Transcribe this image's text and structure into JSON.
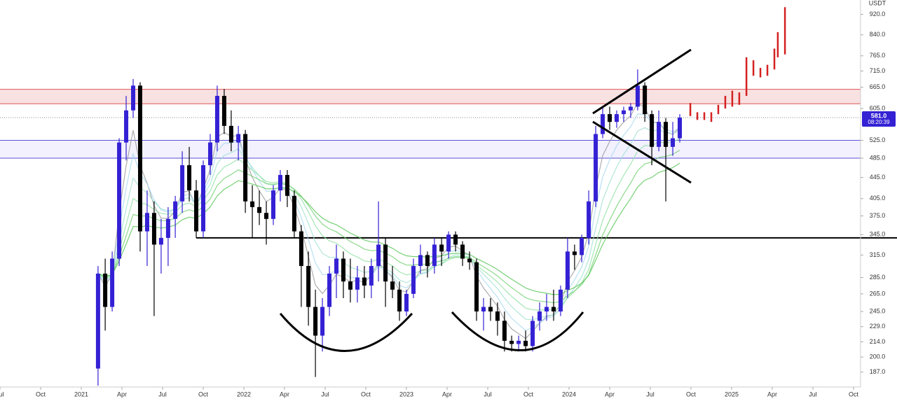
{
  "chart_data": {
    "type": "candlestick",
    "currency": "USDT",
    "log_scale": true,
    "xlim": [
      2020.5,
      2025.793
    ],
    "ylim": [
      175,
      981
    ],
    "xticks": [
      {
        "value": 2020.5,
        "label": "Jul"
      },
      {
        "value": 2020.75,
        "label": "Oct"
      },
      2021,
      {
        "value": 2021.25,
        "label": "Apr"
      },
      {
        "value": 2021.5,
        "label": "Jul"
      },
      {
        "value": 2021.75,
        "label": "Oct"
      },
      2022,
      {
        "value": 2022.25,
        "label": "Apr"
      },
      {
        "value": 2022.5,
        "label": "Jul"
      },
      {
        "value": 2022.75,
        "label": "Oct"
      },
      2023,
      {
        "value": 2023.25,
        "label": "Apr"
      },
      {
        "value": 2023.5,
        "label": "Jul"
      },
      {
        "value": 2023.75,
        "label": "Oct"
      },
      2024,
      {
        "value": 2024.25,
        "label": "Apr"
      },
      {
        "value": 2024.5,
        "label": "Jul"
      },
      {
        "value": 2024.75,
        "label": "Oct"
      },
      2025,
      {
        "value": 2025.25,
        "label": "Apr"
      },
      {
        "value": 2025.5,
        "label": "Jul"
      },
      {
        "value": 2025.75,
        "label": "Oct"
      }
    ],
    "yticks": [
      {
        "value": 920,
        "label": "920.0"
      },
      {
        "value": 840,
        "label": "840.0"
      },
      {
        "value": 765,
        "label": "765.0"
      },
      {
        "value": 715,
        "label": "715.0"
      },
      {
        "value": 665,
        "label": "665.0"
      },
      {
        "value": 605,
        "label": "605.0"
      },
      {
        "value": 525,
        "label": "525.0"
      },
      {
        "value": 485,
        "label": "485.0"
      },
      {
        "value": 445,
        "label": "445.0"
      },
      {
        "value": 405,
        "label": "405.0"
      },
      {
        "value": 375,
        "label": "375.0"
      },
      {
        "value": 345,
        "label": "345.0"
      },
      {
        "value": 315,
        "label": "315.0"
      },
      {
        "value": 285,
        "label": "285.0"
      },
      {
        "value": 265,
        "label": "265.0"
      },
      {
        "value": 245,
        "label": "245.0"
      },
      {
        "value": 229,
        "label": "229.0"
      },
      {
        "value": 214,
        "label": "214.0"
      },
      {
        "value": 200,
        "label": "200.0"
      },
      {
        "value": 187,
        "label": "187.0"
      }
    ],
    "up_color": "#3421d4",
    "down_color": "#000000",
    "candles": {
      "x": [
        2021.103,
        2021.147,
        2021.19,
        2021.233,
        2021.276,
        2021.319,
        2021.362,
        2021.405,
        2021.448,
        2021.491,
        2021.534,
        2021.578,
        2021.621,
        2021.664,
        2021.707,
        2021.75,
        2021.793,
        2021.836,
        2021.879,
        2021.922,
        2021.966,
        2022.009,
        2022.052,
        2022.095,
        2022.138,
        2022.181,
        2022.224,
        2022.267,
        2022.31,
        2022.353,
        2022.397,
        2022.44,
        2022.483,
        2022.526,
        2022.569,
        2022.612,
        2022.655,
        2022.698,
        2022.741,
        2022.784,
        2022.828,
        2022.871,
        2022.914,
        2022.957,
        2023.0,
        2023.043,
        2023.086,
        2023.129,
        2023.172,
        2023.216,
        2023.259,
        2023.302,
        2023.345,
        2023.388,
        2023.431,
        2023.474,
        2023.517,
        2023.56,
        2023.603,
        2023.647,
        2023.69,
        2023.733,
        2023.776,
        2023.819,
        2023.862,
        2023.905,
        2023.948,
        2023.991,
        2024.034,
        2024.078,
        2024.121,
        2024.164,
        2024.207,
        2024.25,
        2024.293,
        2024.336,
        2024.379,
        2024.422,
        2024.466,
        2024.509,
        2024.552,
        2024.595,
        2024.638,
        2024.681
      ],
      "open": [
        190,
        290,
        250,
        310,
        520,
        600,
        670,
        350,
        380,
        330,
        340,
        370,
        400,
        470,
        420,
        350,
        470,
        520,
        640,
        560,
        520,
        540,
        400,
        390,
        380,
        370,
        420,
        450,
        410,
        350,
        300,
        250,
        220,
        250,
        290,
        310,
        280,
        270,
        285,
        275,
        300,
        330,
        280,
        270,
        245,
        265,
        300,
        315,
        300,
        330,
        320,
        345,
        330,
        310,
        305,
        245,
        250,
        245,
        235,
        215,
        212,
        215,
        210,
        235,
        245,
        250,
        245,
        270,
        320,
        315,
        340,
        400,
        540,
        590,
        570,
        590,
        600,
        610,
        670,
        590,
        510,
        570,
        510,
        530
      ],
      "high": [
        300,
        310,
        320,
        530,
        640,
        690,
        680,
        420,
        400,
        370,
        390,
        410,
        500,
        510,
        440,
        480,
        540,
        670,
        660,
        600,
        560,
        550,
        430,
        420,
        400,
        430,
        460,
        460,
        420,
        360,
        320,
        270,
        260,
        300,
        330,
        320,
        310,
        300,
        300,
        310,
        400,
        340,
        300,
        280,
        270,
        310,
        330,
        320,
        340,
        340,
        350,
        350,
        335,
        320,
        310,
        260,
        260,
        255,
        245,
        220,
        220,
        225,
        240,
        255,
        265,
        270,
        275,
        340,
        330,
        345,
        420,
        560,
        610,
        610,
        600,
        610,
        620,
        720,
        680,
        600,
        600,
        580,
        570,
        590
      ],
      "low": [
        176,
        225,
        245,
        300,
        480,
        580,
        320,
        300,
        240,
        290,
        300,
        340,
        380,
        400,
        340,
        340,
        450,
        500,
        540,
        500,
        480,
        380,
        340,
        360,
        330,
        360,
        400,
        390,
        340,
        250,
        230,
        183,
        205,
        240,
        260,
        260,
        255,
        255,
        260,
        260,
        280,
        250,
        260,
        235,
        240,
        260,
        290,
        285,
        290,
        300,
        310,
        320,
        300,
        295,
        235,
        225,
        235,
        220,
        205,
        205,
        205,
        205,
        205,
        225,
        235,
        235,
        240,
        260,
        295,
        305,
        330,
        390,
        530,
        550,
        555,
        570,
        580,
        600,
        570,
        470,
        500,
        400,
        490,
        520
      ],
      "close": [
        290,
        250,
        310,
        520,
        600,
        670,
        350,
        380,
        330,
        340,
        370,
        400,
        470,
        420,
        350,
        470,
        520,
        640,
        560,
        520,
        540,
        400,
        390,
        380,
        370,
        420,
        450,
        410,
        350,
        300,
        250,
        220,
        250,
        290,
        310,
        280,
        270,
        285,
        275,
        300,
        330,
        280,
        270,
        245,
        265,
        300,
        315,
        300,
        330,
        320,
        345,
        330,
        310,
        305,
        245,
        250,
        245,
        235,
        215,
        212,
        215,
        210,
        235,
        245,
        250,
        245,
        270,
        320,
        315,
        340,
        400,
        540,
        590,
        570,
        590,
        600,
        610,
        670,
        590,
        510,
        570,
        510,
        530,
        581
      ]
    },
    "projection": {
      "color": "#d42020",
      "x": [
        2024.746,
        2024.789,
        2024.832,
        2024.875,
        2024.918,
        2024.961,
        2025.004,
        2025.047,
        2025.091,
        2025.134,
        2025.177,
        2025.22,
        2025.263,
        2025.284,
        2025.328
      ],
      "low": [
        585,
        575,
        575,
        570,
        590,
        605,
        610,
        615,
        640,
        700,
        695,
        700,
        720,
        760,
        770
      ],
      "high": [
        620,
        595,
        595,
        595,
        615,
        640,
        655,
        650,
        760,
        750,
        725,
        735,
        790,
        850,
        950
      ]
    },
    "zones": [
      {
        "low": 618,
        "high": 659,
        "color": "#f3c9c9"
      },
      {
        "low": 485,
        "high": 525,
        "color": "#e8e6fb"
      }
    ],
    "support_line": 340,
    "last_price": {
      "value": 581,
      "label": "581.0"
    },
    "countdown": "08:20:39"
  }
}
